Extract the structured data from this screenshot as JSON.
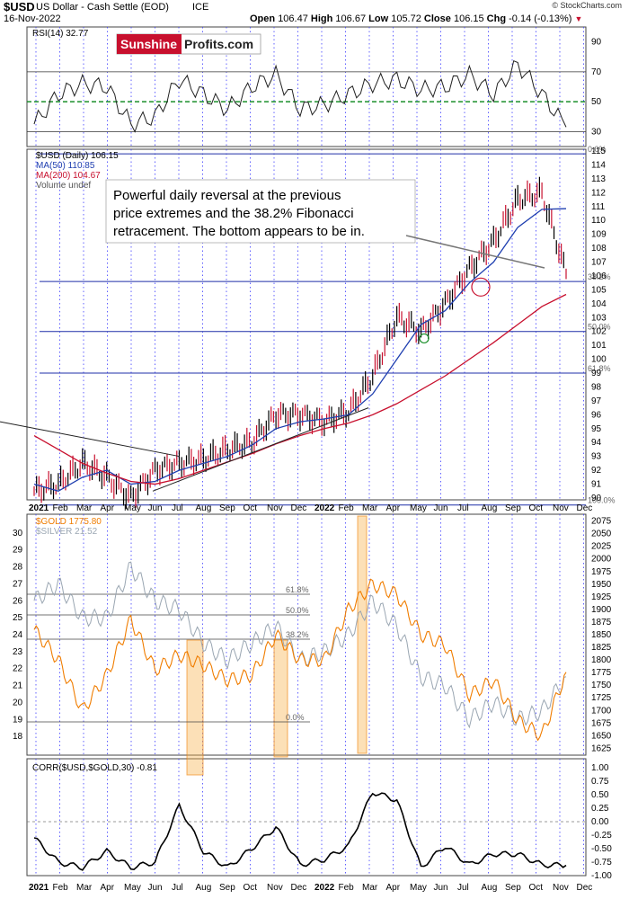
{
  "header": {
    "title": "$USD",
    "subtitle": "US Dollar - Cash Settle (EOD)",
    "exchange": "ICE",
    "date": "16-Nov-2022",
    "open_label": "Open",
    "open": "106.47",
    "high_label": "High",
    "high": "106.67",
    "low_label": "Low",
    "low": "105.72",
    "close_label": "Close",
    "close": "106.15",
    "chg_label": "Chg",
    "chg": "-0.14 (-0.13%)",
    "chg_icon": "down-triangle-icon",
    "attribution": "© StockCharts.com"
  },
  "branding": {
    "part1": "Sunshine",
    "part2": "Profits.com",
    "accent": "#c8102e"
  },
  "rsi_panel": {
    "label": "RSI(14) 32.77",
    "ticks": [
      "90",
      "70",
      "50",
      "30"
    ]
  },
  "price_panel": {
    "legend": [
      "$USD (Daily) 106.15",
      "MA(50) 110.85",
      "MA(200) 104.67",
      "Volume undef"
    ],
    "legend_colors": [
      "#000000",
      "#1f3fb0",
      "#c8102e",
      "#555555"
    ],
    "y_ticks": [
      "115",
      "114",
      "113",
      "112",
      "111",
      "110",
      "109",
      "108",
      "107",
      "106",
      "105",
      "104",
      "103",
      "102",
      "101",
      "100",
      "99",
      "98",
      "97",
      "96",
      "95",
      "94",
      "93",
      "92",
      "91",
      "90"
    ],
    "fib_labels": [
      "0.0%",
      "38.2%",
      "50.0%",
      "61.8%",
      "100.0%"
    ],
    "annotation": [
      "Powerful daily reversal at the previous",
      "price extremes and the 38.2% Fibonacci",
      "retracement. The bottom appears to be in."
    ]
  },
  "x_axis": {
    "labels": [
      "2021",
      "Feb",
      "Mar",
      "Apr",
      "May",
      "Jun",
      "Jul",
      "Aug",
      "Sep",
      "Oct",
      "Nov",
      "Dec",
      "2022",
      "Feb",
      "Mar",
      "Apr",
      "May",
      "Jun",
      "Jul",
      "Aug",
      "Sep",
      "Oct",
      "Nov",
      "Dec"
    ]
  },
  "gold_panel": {
    "legend": [
      "$GOLD 1775.80",
      "$SILVER 21.52"
    ],
    "legend_colors": [
      "#f07d00",
      "#9aa6b2"
    ],
    "left_ticks": [
      "30",
      "29",
      "28",
      "27",
      "26",
      "25",
      "24",
      "23",
      "22",
      "21",
      "20",
      "19",
      "18"
    ],
    "right_ticks": [
      "2075",
      "2050",
      "2025",
      "2000",
      "1975",
      "1950",
      "1925",
      "1900",
      "1875",
      "1850",
      "1825",
      "1800",
      "1775",
      "1750",
      "1725",
      "1700",
      "1675",
      "1650",
      "1625"
    ],
    "fib_labels": [
      "61.8%",
      "50.0%",
      "38.2%",
      "0.0%"
    ]
  },
  "corr_panel": {
    "label": "CORR($USD,$GOLD,30) -0.81",
    "ticks": [
      "1.00",
      "0.75",
      "0.50",
      "0.25",
      "0.00",
      "-0.25",
      "-0.50",
      "-0.75",
      "-1.00"
    ]
  },
  "chart_data": [
    {
      "type": "line",
      "title": "RSI(14) 32.77",
      "x": [
        "2021-01",
        "2021-02",
        "2021-03",
        "2021-04",
        "2021-05",
        "2021-06",
        "2021-07",
        "2021-08",
        "2021-09",
        "2021-10",
        "2021-11",
        "2021-12",
        "2022-01",
        "2022-02",
        "2022-03",
        "2022-04",
        "2022-05",
        "2022-06",
        "2022-07",
        "2022-08",
        "2022-09",
        "2022-10",
        "2022-11"
      ],
      "series": [
        {
          "values": [
            35,
            55,
            62,
            60,
            35,
            40,
            65,
            55,
            45,
            60,
            68,
            45,
            48,
            55,
            62,
            65,
            58,
            60,
            68,
            55,
            75,
            55,
            33
          ]
        }
      ],
      "ylim": [
        20,
        100
      ],
      "reference_lines": [
        70,
        50,
        30
      ]
    },
    {
      "type": "line",
      "title": "$USD (Daily) 106.15",
      "x": [
        "2021-01",
        "2021-02",
        "2021-03",
        "2021-04",
        "2021-05",
        "2021-06",
        "2021-07",
        "2021-08",
        "2021-09",
        "2021-10",
        "2021-11",
        "2021-12",
        "2022-01",
        "2022-02",
        "2022-03",
        "2022-04",
        "2022-05",
        "2022-06",
        "2022-07",
        "2022-08",
        "2022-09",
        "2022-10",
        "2022-11"
      ],
      "series": [
        {
          "name": "$USD (Daily) 106.15",
          "values": [
            90.5,
            91.0,
            92.5,
            91.5,
            90.0,
            92.0,
            92.5,
            92.8,
            93.5,
            94.0,
            96.0,
            96.0,
            95.5,
            96.2,
            98.8,
            103.0,
            102.0,
            104.0,
            106.5,
            108.5,
            111.5,
            112.0,
            106.15
          ]
        },
        {
          "name": "MA(50) 110.85",
          "values": [
            91.0,
            90.5,
            91.5,
            92.0,
            91.0,
            91.2,
            92.0,
            92.5,
            93.0,
            93.8,
            95.0,
            95.5,
            95.7,
            96.0,
            97.5,
            100.0,
            102.5,
            103.5,
            105.5,
            107.0,
            109.5,
            110.8,
            110.85
          ]
        },
        {
          "name": "MA(200) 104.67",
          "values": [
            94.5,
            93.5,
            92.5,
            91.8,
            91.2,
            91.0,
            91.4,
            92.0,
            92.6,
            93.2,
            93.9,
            94.5,
            95.0,
            95.4,
            96.0,
            96.8,
            97.8,
            98.8,
            100.0,
            101.2,
            102.5,
            103.8,
            104.67
          ]
        }
      ],
      "ylim": [
        90,
        115
      ],
      "fib_levels": [
        {
          "label": "0.0%",
          "value": 114.8
        },
        {
          "label": "38.2%",
          "value": 105.6
        },
        {
          "label": "50.0%",
          "value": 102.0
        },
        {
          "label": "61.8%",
          "value": 99.0
        },
        {
          "label": "100.0%",
          "value": 89.5
        }
      ]
    },
    {
      "type": "line",
      "title": "$GOLD 1775.80 / $SILVER 21.52",
      "x": [
        "2021-01",
        "2021-02",
        "2021-03",
        "2021-04",
        "2021-05",
        "2021-06",
        "2021-07",
        "2021-08",
        "2021-09",
        "2021-10",
        "2021-11",
        "2021-12",
        "2022-01",
        "2022-02",
        "2022-03",
        "2022-04",
        "2022-05",
        "2022-06",
        "2022-07",
        "2022-08",
        "2022-09",
        "2022-10",
        "2022-11"
      ],
      "series": [
        {
          "name": "$GOLD 1775.80",
          "values": [
            1860,
            1800,
            1700,
            1770,
            1880,
            1780,
            1810,
            1790,
            1760,
            1770,
            1850,
            1800,
            1800,
            1900,
            1950,
            1930,
            1850,
            1830,
            1730,
            1760,
            1680,
            1650,
            1775.8
          ]
        },
        {
          "name": "$SILVER 21.52",
          "values": [
            26,
            27,
            25,
            25,
            28,
            26,
            25.5,
            23.5,
            22.5,
            23.5,
            24.5,
            22.5,
            23,
            24,
            26,
            24.5,
            21.5,
            21,
            19,
            20,
            19,
            19.5,
            21.52
          ]
        }
      ],
      "ylim_right": [
        1615,
        2085
      ],
      "ylim_left": [
        17,
        31
      ]
    },
    {
      "type": "line",
      "title": "CORR($USD,$GOLD,30) -0.81",
      "x": [
        "2021-01",
        "2021-02",
        "2021-03",
        "2021-04",
        "2021-05",
        "2021-06",
        "2021-07",
        "2021-08",
        "2021-09",
        "2021-10",
        "2021-11",
        "2021-12",
        "2022-01",
        "2022-02",
        "2022-03",
        "2022-04",
        "2022-05",
        "2022-06",
        "2022-07",
        "2022-08",
        "2022-09",
        "2022-10",
        "2022-11"
      ],
      "series": [
        {
          "values": [
            -0.3,
            -0.75,
            -0.85,
            -0.55,
            -0.85,
            -0.75,
            0.3,
            -0.55,
            -0.85,
            -0.5,
            -0.1,
            -0.8,
            -0.7,
            -0.45,
            0.55,
            0.4,
            -0.85,
            -0.45,
            -0.8,
            -0.6,
            -0.6,
            -0.8,
            -0.81
          ]
        }
      ],
      "ylim": [
        -1,
        1
      ]
    }
  ]
}
